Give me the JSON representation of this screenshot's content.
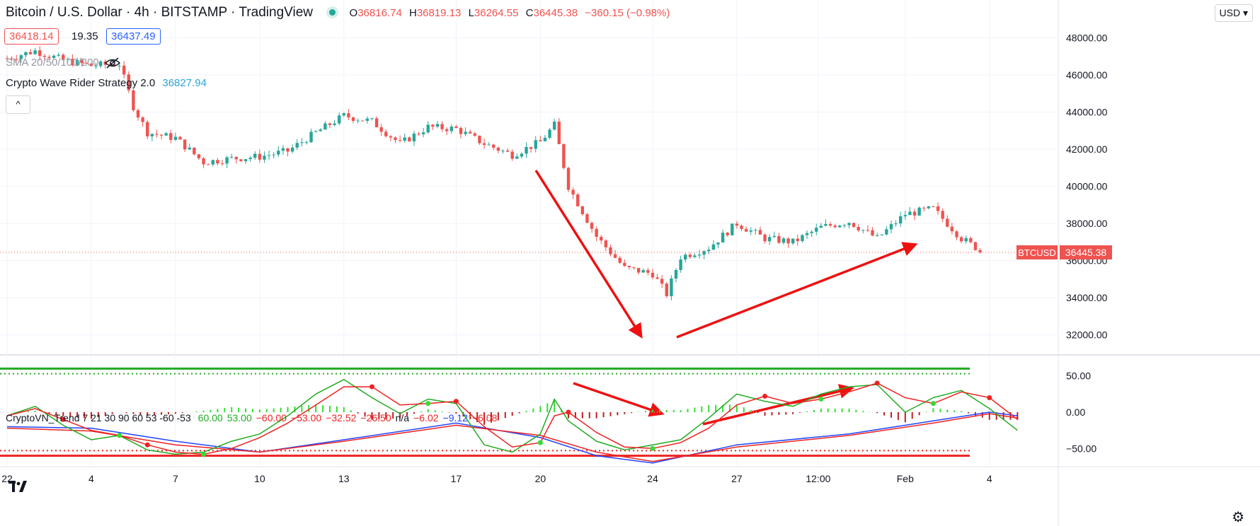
{
  "header": {
    "symbol_title": "Bitcoin / U.S. Dollar · 4h · BITSTAMP · TradingView",
    "ohlc": [
      {
        "k": "O",
        "v": "36816.74"
      },
      {
        "k": "H",
        "v": "36819.13"
      },
      {
        "k": "L",
        "v": "36264.55"
      },
      {
        "k": "C",
        "v": "36445.38"
      }
    ],
    "change": "−360.15 (−0.98%)",
    "bid": "36418.14",
    "spread": "19.35",
    "ask": "36437.49",
    "sma_label": "SMA 20/50/100/200",
    "strategy_label": "Crypto Wave Rider Strategy 2.0",
    "strategy_value": "36827.94",
    "collapse_glyph": "^",
    "currency": "USD",
    "currency_arrow": "▾"
  },
  "colors": {
    "up": "#26a69a",
    "down": "#ef5350",
    "arrow": "#ee1111",
    "osc_green": "#22aa22",
    "osc_red": "#ee2222",
    "osc_blue": "#2244ff",
    "price_tag": "#ef5350"
  },
  "price_tag": {
    "symbol": "BTCUSD",
    "value": "36445.38"
  },
  "subpane": {
    "title": "CryptoVN_Trend 7 21 30 90 60 53 -60 -53",
    "values": [
      {
        "t": "60.00",
        "c": "#22aa22"
      },
      {
        "t": "53.00",
        "c": "#22aa22"
      },
      {
        "t": "−60.00",
        "c": "#ee2222"
      },
      {
        "t": "−53.00",
        "c": "#ee2222"
      },
      {
        "t": "−32.52",
        "c": "#ee2222"
      },
      {
        "t": "−26.50",
        "c": "#ee2222"
      },
      {
        "t": "n/a",
        "c": "#131722"
      },
      {
        "t": "−6.02",
        "c": "#ee2222"
      },
      {
        "t": "−9.12",
        "c": "#2244ff"
      },
      {
        "t": "−6.08",
        "c": "#ee2222"
      }
    ],
    "y_ticks": [
      "50.00",
      "0.00",
      "−50.00"
    ],
    "y_tick_values": [
      50,
      0,
      -50
    ],
    "levels": {
      "upper": 60,
      "upper_dotted": 53,
      "lower": -60,
      "lower_dotted": -53
    },
    "ylim": [
      -75,
      75
    ]
  },
  "chart_data": {
    "type": "candlestick",
    "y_ticks": [
      "48000.00",
      "46000.00",
      "44000.00",
      "42000.00",
      "40000.00",
      "38000.00",
      "36000.00",
      "34000.00",
      "32000.00"
    ],
    "y_tick_values": [
      48000,
      46000,
      44000,
      42000,
      40000,
      38000,
      36000,
      34000,
      32000
    ],
    "ylim": [
      31000,
      49200
    ],
    "x_ticks": [
      {
        "label": "22",
        "day": 1
      },
      {
        "label": "4",
        "day": 4
      },
      {
        "label": "7",
        "day": 7
      },
      {
        "label": "10",
        "day": 10
      },
      {
        "label": "13",
        "day": 13
      },
      {
        "label": "17",
        "day": 17
      },
      {
        "label": "20",
        "day": 20
      },
      {
        "label": "24",
        "day": 24
      },
      {
        "label": "27",
        "day": 27
      },
      {
        "label": "12:00",
        "day": 29.9
      },
      {
        "label": "Feb",
        "day": 33
      },
      {
        "label": "4",
        "day": 36
      }
    ],
    "xlim_days": [
      1,
      38.2
    ],
    "last_price": 36445.38,
    "path": [
      [
        1,
        46900
      ],
      [
        2,
        47300
      ],
      [
        3,
        46800
      ],
      [
        4,
        46500
      ],
      [
        5,
        46600
      ],
      [
        5.5,
        44300
      ],
      [
        6,
        42900
      ],
      [
        7,
        42600
      ],
      [
        8,
        41300
      ],
      [
        9,
        41500
      ],
      [
        10,
        41600
      ],
      [
        11,
        41900
      ],
      [
        12,
        42900
      ],
      [
        13,
        43800
      ],
      [
        14,
        43500
      ],
      [
        15,
        42300
      ],
      [
        16,
        43200
      ],
      [
        17,
        43100
      ],
      [
        18,
        42300
      ],
      [
        19,
        41700
      ],
      [
        20,
        42400
      ],
      [
        20.5,
        43300
      ],
      [
        21,
        40000
      ],
      [
        22,
        37300
      ],
      [
        23,
        35600
      ],
      [
        24,
        35300
      ],
      [
        24.5,
        34200
      ],
      [
        25,
        36200
      ],
      [
        26,
        36700
      ],
      [
        27,
        38000
      ],
      [
        28,
        37200
      ],
      [
        29,
        37000
      ],
      [
        30,
        37800
      ],
      [
        31,
        38100
      ],
      [
        32,
        37200
      ],
      [
        33,
        38500
      ],
      [
        34,
        38800
      ],
      [
        35,
        37200
      ],
      [
        35.8,
        36445
      ]
    ],
    "osc_fast": [
      [
        1,
        -5
      ],
      [
        2,
        8
      ],
      [
        3,
        -18
      ],
      [
        4,
        -38
      ],
      [
        5,
        -32
      ],
      [
        6,
        -52
      ],
      [
        7,
        -58
      ],
      [
        8,
        -55
      ],
      [
        9,
        -40
      ],
      [
        10,
        -30
      ],
      [
        11,
        -5
      ],
      [
        12,
        25
      ],
      [
        13,
        45
      ],
      [
        14,
        20
      ],
      [
        15,
        -2
      ],
      [
        16,
        18
      ],
      [
        17,
        12
      ],
      [
        18,
        -45
      ],
      [
        19,
        -55
      ],
      [
        20,
        -30
      ],
      [
        20.5,
        18
      ],
      [
        21,
        -12
      ],
      [
        22,
        -40
      ],
      [
        23,
        -52
      ],
      [
        24,
        -45
      ],
      [
        25,
        -38
      ],
      [
        26,
        -8
      ],
      [
        27,
        25
      ],
      [
        28,
        15
      ],
      [
        29,
        8
      ],
      [
        30,
        25
      ],
      [
        31,
        35
      ],
      [
        32,
        38
      ],
      [
        33,
        0
      ],
      [
        34,
        20
      ],
      [
        35,
        30
      ],
      [
        36,
        5
      ],
      [
        37,
        -25
      ]
    ],
    "osc_slow": [
      [
        1,
        -5
      ],
      [
        2,
        5
      ],
      [
        3,
        -10
      ],
      [
        4,
        -25
      ],
      [
        5,
        -32
      ],
      [
        6,
        -45
      ],
      [
        7,
        -55
      ],
      [
        8,
        -58
      ],
      [
        9,
        -50
      ],
      [
        10,
        -35
      ],
      [
        11,
        -15
      ],
      [
        12,
        10
      ],
      [
        13,
        35
      ],
      [
        14,
        35
      ],
      [
        15,
        10
      ],
      [
        16,
        12
      ],
      [
        17,
        15
      ],
      [
        18,
        -20
      ],
      [
        19,
        -48
      ],
      [
        20,
        -42
      ],
      [
        20.5,
        -5
      ],
      [
        21,
        0
      ],
      [
        22,
        -28
      ],
      [
        23,
        -48
      ],
      [
        24,
        -50
      ],
      [
        25,
        -42
      ],
      [
        26,
        -22
      ],
      [
        27,
        10
      ],
      [
        28,
        22
      ],
      [
        29,
        12
      ],
      [
        30,
        18
      ],
      [
        31,
        28
      ],
      [
        32,
        40
      ],
      [
        33,
        20
      ],
      [
        34,
        12
      ],
      [
        35,
        28
      ],
      [
        36,
        20
      ],
      [
        37,
        -10
      ]
    ],
    "osc_trend_blue": [
      [
        1,
        -20
      ],
      [
        4,
        -22
      ],
      [
        7,
        -40
      ],
      [
        10,
        -55
      ],
      [
        13,
        -38
      ],
      [
        17,
        -15
      ],
      [
        20,
        -35
      ],
      [
        22,
        -60
      ],
      [
        24,
        -70
      ],
      [
        27,
        -45
      ],
      [
        31,
        -30
      ],
      [
        34,
        -12
      ],
      [
        36,
        0
      ],
      [
        37,
        -5
      ]
    ],
    "osc_trend_red": [
      [
        1,
        -22
      ],
      [
        4,
        -26
      ],
      [
        7,
        -45
      ],
      [
        10,
        -55
      ],
      [
        13,
        -40
      ],
      [
        17,
        -18
      ],
      [
        20,
        -32
      ],
      [
        22,
        -55
      ],
      [
        24,
        -68
      ],
      [
        27,
        -48
      ],
      [
        31,
        -32
      ],
      [
        34,
        -15
      ],
      [
        36,
        -2
      ],
      [
        37,
        -8
      ]
    ]
  }
}
